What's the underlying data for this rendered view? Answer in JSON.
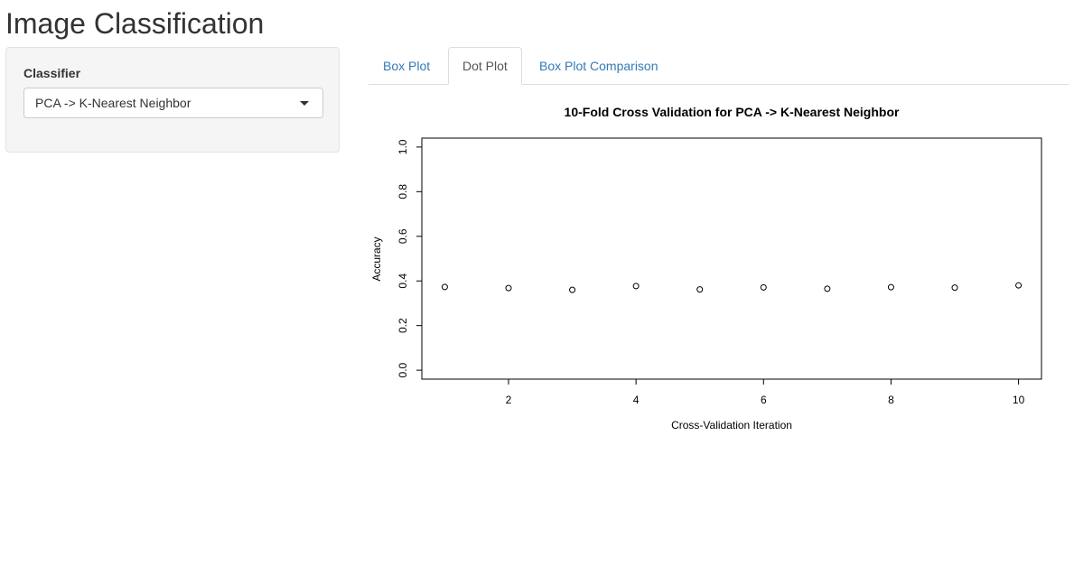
{
  "app": {
    "title": "Image Classification"
  },
  "sidebar": {
    "classifier_label": "Classifier",
    "classifier_selected": "PCA -> K-Nearest Neighbor"
  },
  "tabs": [
    {
      "label": "Box Plot",
      "active": false
    },
    {
      "label": "Dot Plot",
      "active": true
    },
    {
      "label": "Box Plot Comparison",
      "active": false
    }
  ],
  "colors": {
    "link": "#337ab7",
    "active_tab_text": "#555555",
    "sidebar_bg": "#f5f5f5"
  },
  "chart_data": {
    "type": "scatter",
    "title": "10-Fold Cross Validation for PCA -> K-Nearest Neighbor",
    "xlabel": "Cross-Validation Iteration",
    "ylabel": "Accuracy",
    "x": [
      1,
      2,
      3,
      4,
      5,
      6,
      7,
      8,
      9,
      10
    ],
    "y": [
      0.373,
      0.368,
      0.36,
      0.377,
      0.362,
      0.371,
      0.365,
      0.372,
      0.37,
      0.38
    ],
    "xlim": [
      0.64,
      10.36
    ],
    "ylim": [
      -0.04,
      1.04
    ],
    "xticks": [
      "2",
      "4",
      "6",
      "8",
      "10"
    ],
    "yticks": [
      "0.0",
      "0.2",
      "0.4",
      "0.6",
      "0.8",
      "1.0"
    ],
    "marker": "open-circle",
    "grid": false
  }
}
